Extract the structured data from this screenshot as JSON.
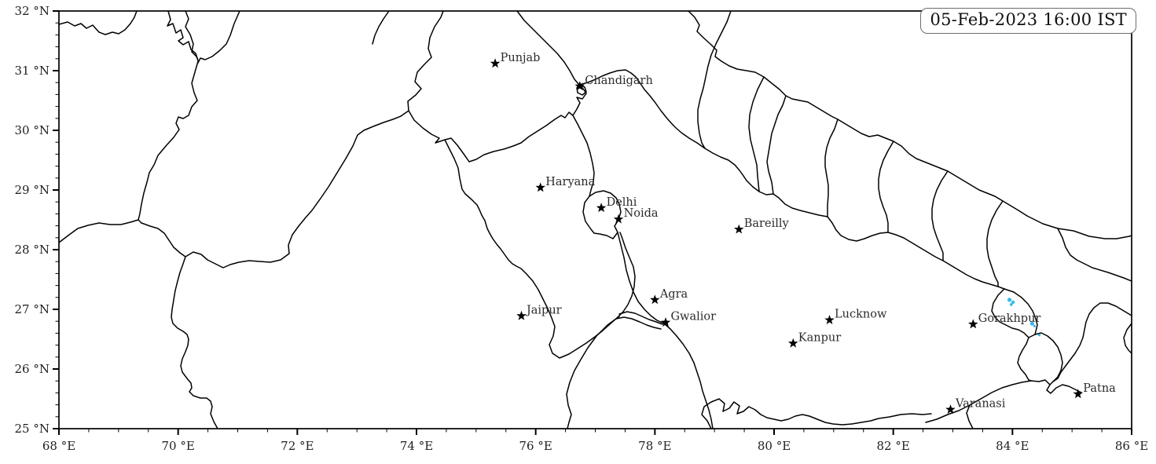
{
  "figure": {
    "timestamp_label": "05-Feb-2023 16:00 IST"
  },
  "map": {
    "projection": "PlateCarree",
    "extent": {
      "lon_min": 68,
      "lon_max": 86,
      "lat_min": 25,
      "lat_max": 32
    },
    "axes": {
      "lon_ticks": [
        {
          "value": 68,
          "label": "68 °E"
        },
        {
          "value": 70,
          "label": "70 °E"
        },
        {
          "value": 72,
          "label": "72 °E"
        },
        {
          "value": 74,
          "label": "74 °E"
        },
        {
          "value": 76,
          "label": "76 °E"
        },
        {
          "value": 78,
          "label": "78 °E"
        },
        {
          "value": 80,
          "label": "80 °E"
        },
        {
          "value": 82,
          "label": "82 °E"
        },
        {
          "value": 84,
          "label": "84 °E"
        },
        {
          "value": 86,
          "label": "86 °E"
        }
      ],
      "lat_ticks": [
        {
          "value": 25,
          "label": "25 °N"
        },
        {
          "value": 26,
          "label": "26 °N"
        },
        {
          "value": 27,
          "label": "27 °N"
        },
        {
          "value": 28,
          "label": "28 °N"
        },
        {
          "value": 29,
          "label": "29 °N"
        },
        {
          "value": 30,
          "label": "30 °N"
        },
        {
          "value": 31,
          "label": "31 °N"
        },
        {
          "value": 32,
          "label": "32 °N"
        }
      ],
      "lon_minor_step": 0.5,
      "lat_minor_step": 0.2
    },
    "markers": [
      {
        "name": "Punjab",
        "lon": 75.32,
        "lat": 31.12
      },
      {
        "name": "Chandigarh",
        "lon": 76.74,
        "lat": 30.74
      },
      {
        "name": "Haryana",
        "lon": 76.08,
        "lat": 29.04
      },
      {
        "name": "Delhi",
        "lon": 77.1,
        "lat": 28.7
      },
      {
        "name": "Noida",
        "lon": 77.39,
        "lat": 28.51
      },
      {
        "name": "Bareilly",
        "lon": 79.41,
        "lat": 28.34
      },
      {
        "name": "Jaipur",
        "lon": 75.76,
        "lat": 26.89
      },
      {
        "name": "Agra",
        "lon": 78.0,
        "lat": 27.16
      },
      {
        "name": "Gwalior",
        "lon": 78.18,
        "lat": 26.78
      },
      {
        "name": "Lucknow",
        "lon": 80.93,
        "lat": 26.82
      },
      {
        "name": "Kanpur",
        "lon": 80.32,
        "lat": 26.43
      },
      {
        "name": "Gorakhpur",
        "lon": 83.34,
        "lat": 26.75
      },
      {
        "name": "Varanasi",
        "lon": 82.96,
        "lat": 25.32
      },
      {
        "name": "Patna",
        "lon": 85.1,
        "lat": 25.58
      }
    ],
    "detection_dots": [
      {
        "lon": 83.95,
        "lat": 27.16,
        "r": 2.6
      },
      {
        "lon": 84.01,
        "lat": 27.12,
        "r": 2.1
      },
      {
        "lon": 83.98,
        "lat": 27.08,
        "r": 1.9
      },
      {
        "lon": 84.33,
        "lat": 26.76,
        "r": 2.5
      },
      {
        "lon": 84.37,
        "lat": 26.72,
        "r": 1.6
      },
      {
        "lon": 84.45,
        "lat": 26.57,
        "r": 1.6
      }
    ],
    "colors": {
      "boundary": "#000000",
      "marker": "#000000",
      "label": "#2b2b2b",
      "detection": "#35b8ea"
    }
  }
}
